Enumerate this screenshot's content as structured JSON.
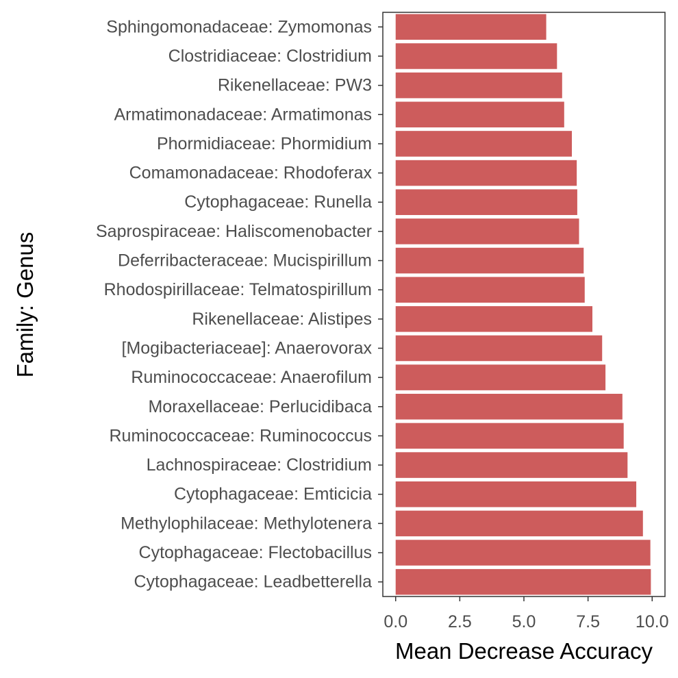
{
  "chart_data": {
    "type": "bar",
    "orientation": "horizontal",
    "title": "",
    "xlabel": "Mean Decrease Accuracy",
    "ylabel": "Family: Genus",
    "xlim": [
      -0.5,
      10.5
    ],
    "xticks": [
      0,
      2.5,
      5,
      7.5,
      10
    ],
    "xtick_labels": [
      "0.0",
      "2.5",
      "5.0",
      "7.5",
      "10.0"
    ],
    "grid": false,
    "bar_color": "#cd5c5c",
    "categories": [
      "Sphingomonadaceae: Zymomonas",
      "Clostridiaceae: Clostridium",
      "Rikenellaceae: PW3",
      "Armatimonadaceae: Armatimonas",
      "Phormidiaceae: Phormidium",
      "Comamonadaceae: Rhodoferax",
      "Cytophagaceae: Runella",
      "Saprospiraceae: Haliscomenobacter",
      "Deferribacteraceae: Mucispirillum",
      "Rhodospirillaceae: Telmatospirillum",
      "Rikenellaceae: Alistipes",
      "[Mogibacteriaceae]: Anaerovorax",
      "Ruminococcaceae: Anaerofilum",
      "Moraxellaceae: Perlucidibaca",
      "Ruminococcaceae: Ruminococcus",
      "Lachnospiraceae: Clostridium",
      "Cytophagaceae: Emticicia",
      "Methylophilaceae: Methylotenera",
      "Cytophagaceae: Flectobacillus",
      "Cytophagaceae: Leadbetterella"
    ],
    "values": [
      5.87,
      6.29,
      6.49,
      6.57,
      6.87,
      7.06,
      7.08,
      7.15,
      7.33,
      7.37,
      7.67,
      8.05,
      8.18,
      8.84,
      8.89,
      9.04,
      9.38,
      9.64,
      9.93,
      9.95
    ]
  }
}
